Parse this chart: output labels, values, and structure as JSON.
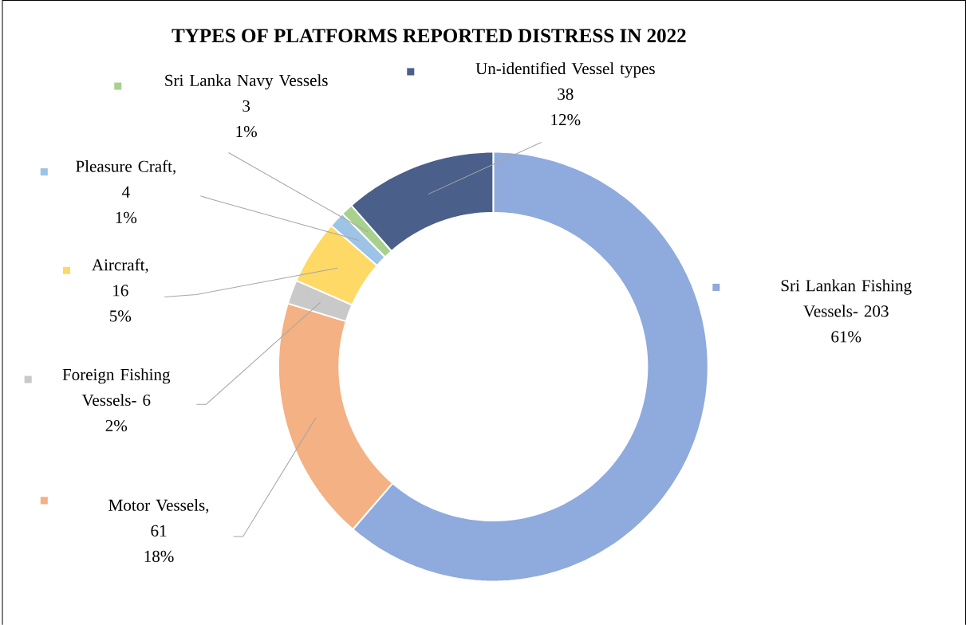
{
  "chart_data": {
    "type": "donut",
    "title": "TYPES OF PLATFORMS REPORTED DISTRESS IN 2022",
    "categories": [
      "Sri Lankan Fishing Vessels-",
      "Motor Vessels",
      "Foreign Fishing Vessels-",
      "Aircraft",
      "Pleasure Craft",
      "Sri Lanka Navy Vessels",
      "Un-identified Vessel types"
    ],
    "legend": "left",
    "values": [
      203,
      61,
      6,
      16,
      4,
      3,
      38
    ],
    "colors": [
      "#8faadc",
      "#f4b183",
      "#c9c9c9",
      "#ffd966",
      "#9dc3e6",
      "#a9d18e",
      "#4a5f8a"
    ],
    "value_labels": [
      "203\n61%",
      ",\n61\n18%",
      "6\n2%",
      ",\n16\n5%",
      ",\n4\n1%",
      "3\n1%",
      "38\n12%"
    ]
  }
}
